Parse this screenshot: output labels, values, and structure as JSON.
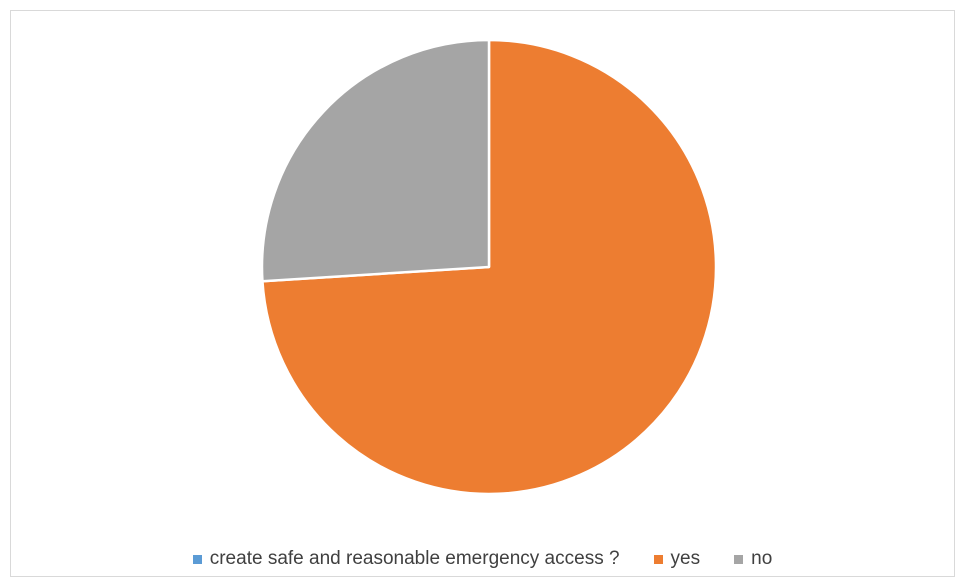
{
  "chart_data": {
    "type": "pie",
    "title": "",
    "start_angle_deg": 0,
    "direction": "clockwise",
    "slices": [
      {
        "label": "create safe and reasonable emergency access ?",
        "value": 0,
        "color": "#5B9BD5"
      },
      {
        "label": "yes",
        "value": 74,
        "color": "#ED7D31"
      },
      {
        "label": "no",
        "value": 26,
        "color": "#A5A5A5"
      }
    ],
    "legend_position": "bottom"
  }
}
